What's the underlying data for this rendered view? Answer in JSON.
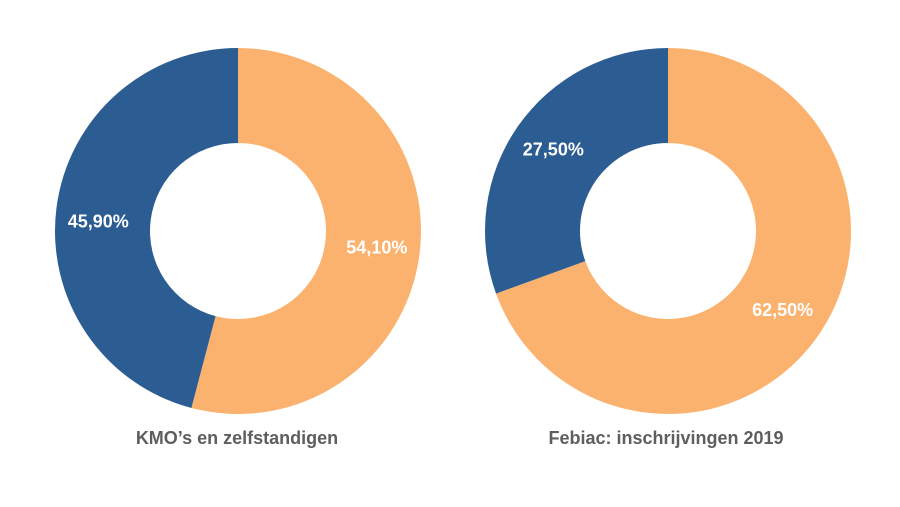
{
  "colors": {
    "blue": "#2b5c92",
    "orange": "#fbb26e"
  },
  "chart_data": [
    {
      "type": "pie",
      "title": "KMO’s en zelfstandigen",
      "slices": [
        {
          "label": "54,10%",
          "value": 54.1,
          "color": "#fbb26e"
        },
        {
          "label": "45,90%",
          "value": 45.9,
          "color": "#2b5c92"
        }
      ]
    },
    {
      "type": "pie",
      "title": "Febiac: inschrijvingen 2019",
      "slices": [
        {
          "label": "62,50%",
          "value": 62.5,
          "color": "#fbb26e"
        },
        {
          "label": "27,50%",
          "value": 27.5,
          "color": "#2b5c92"
        }
      ]
    }
  ]
}
